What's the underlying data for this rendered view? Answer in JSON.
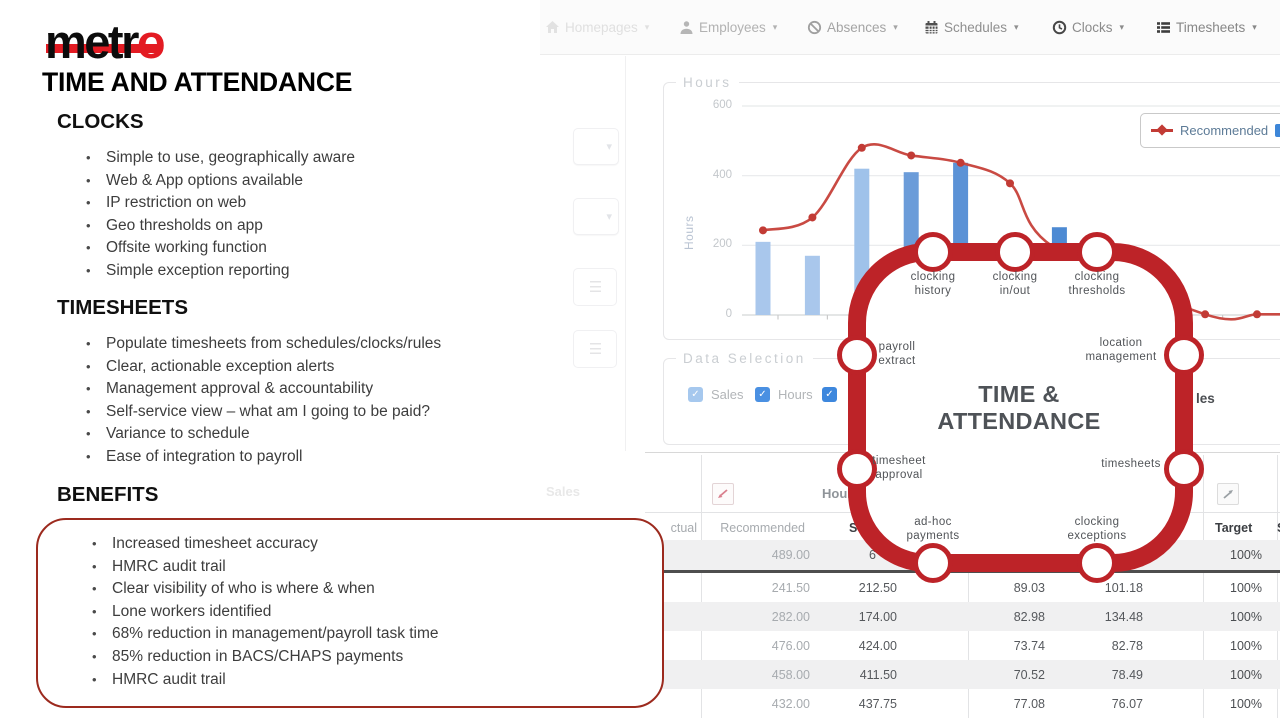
{
  "slide": {
    "logo": {
      "black": "metr",
      "red_o": "o",
      "accent": "#e31b23"
    },
    "title": "TIME AND ATTENDANCE",
    "sections": [
      {
        "heading": "CLOCKS",
        "bullets": [
          "Simple to use, geographically aware",
          "Web & App options available",
          "IP restriction on web",
          "Geo thresholds on app",
          "Offsite working function",
          "Simple exception reporting"
        ]
      },
      {
        "heading": "TIMESHEETS",
        "bullets": [
          "Populate timesheets from schedules/clocks/rules",
          "Clear, actionable exception alerts",
          "Management approval & accountability",
          "Self-service view – what am I going to be paid?",
          "Variance to schedule",
          "Ease of integration to payroll"
        ]
      },
      {
        "heading": "BENEFITS",
        "bullets": [
          "Increased timesheet accuracy",
          "HMRC audit trail",
          "Clear visibility of who is where & when",
          "Lone workers identified",
          "68% reduction in management/payroll task time",
          "85% reduction in BACS/CHAPS payments",
          "HMRC audit trail"
        ]
      }
    ],
    "benefits_box_color": "#9c2a1e"
  },
  "app": {
    "nav": {
      "items": [
        {
          "label": "Homepages",
          "icon": "home"
        },
        {
          "label": "Employees",
          "icon": "person"
        },
        {
          "label": "Absences",
          "icon": "no-entry"
        },
        {
          "label": "Schedules",
          "icon": "calendar"
        },
        {
          "label": "Clocks",
          "icon": "clock"
        },
        {
          "label": "Timesheets",
          "icon": "list"
        }
      ]
    },
    "chart_panel": {
      "legend": "Hours",
      "y_axis_label": "Hours",
      "series_legend": "Recommended"
    },
    "data_selection": {
      "legend": "Data Selection",
      "checkboxes": [
        "Sales",
        "Hours",
        ""
      ]
    },
    "table": {
      "group_header": "Hours",
      "headers": {
        "actual_fragment": "ctual",
        "recommended": "Recommended",
        "scheduled_fragment": "Sch",
        "target": "Target",
        "cut_fragment": "S"
      },
      "row1_sch_fragment": "6",
      "rows": [
        {
          "recommended": "489.00",
          "sch": null,
          "a": null,
          "b": null,
          "target": "100%"
        },
        {
          "recommended": "241.50",
          "sch": "212.50",
          "a": "89.03",
          "b": "101.18",
          "target": "100%"
        },
        {
          "recommended": "282.00",
          "sch": "174.00",
          "a": "82.98",
          "b": "134.48",
          "target": "100%"
        },
        {
          "recommended": "476.00",
          "sch": "424.00",
          "a": "73.74",
          "b": "82.78",
          "target": "100%"
        },
        {
          "recommended": "458.00",
          "sch": "411.50",
          "a": "70.52",
          "b": "78.49",
          "target": "100%"
        },
        {
          "recommended": "432.00",
          "sch": "437.75",
          "a": "77.08",
          "b": "76.07",
          "target": "100%"
        }
      ]
    },
    "fragments": {
      "side_label": "les",
      "faint_row_label": "Sales"
    }
  },
  "diagram": {
    "accent_color": "#bd2328",
    "center": [
      "TIME &",
      "ATTENDANCE"
    ],
    "nodes": [
      [
        "clocking",
        "history"
      ],
      [
        "clocking",
        "in/out"
      ],
      [
        "clocking",
        "thresholds"
      ],
      [
        "payroll",
        "extract"
      ],
      [
        "location",
        "management"
      ],
      [
        "timesheet",
        "approval"
      ],
      [
        "timesheets"
      ],
      [
        "ad-hoc",
        "payments"
      ],
      [
        "clocking",
        "exceptions"
      ]
    ]
  },
  "chart_data": {
    "type": "bar+line",
    "title": "Hours",
    "ylabel": "Hours",
    "ylim": [
      0,
      600
    ],
    "yticks": [
      0,
      200,
      400,
      600
    ],
    "x_tick_labels_visible": false,
    "legend": [
      "Recommended"
    ],
    "legend_position": "top-right",
    "grid": true,
    "bars": {
      "name": "Hours",
      "values": [
        210,
        170,
        420,
        410,
        437,
        225,
        252
      ],
      "colors": [
        "#a9c7ec",
        "#a9c7ec",
        "#9fc2ea",
        "#6b9cd9",
        "#5b92d6",
        "#6b9cd9",
        "#4d8ad3"
      ]
    },
    "line": {
      "name": "Recommended",
      "color": "#c94a43",
      "dot_color": "#c23b35",
      "points_i": [
        0,
        1,
        2,
        3,
        4,
        5,
        5.85,
        8.95,
        10,
        10.55
      ],
      "values": [
        243,
        280,
        480,
        458,
        437,
        378,
        198,
        2,
        2,
        2
      ],
      "dot_points": [
        0,
        1,
        2,
        3,
        4,
        5,
        7,
        8
      ]
    }
  }
}
